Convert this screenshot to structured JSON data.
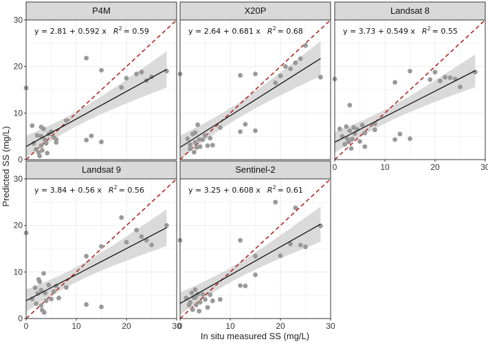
{
  "figure": {
    "xlabel": "In situ measured SS (mg/L)",
    "ylabel": "Predicted SS (mg/L)"
  },
  "colors": {
    "strip": "#d9d9d9",
    "point": "#999999",
    "band": "#d3d3d3",
    "fit": "#111111",
    "identity": "#b22222",
    "grid": "#ebebeb"
  },
  "chart_data": [
    {
      "type": "scatter",
      "title": "P4M",
      "equation": "y = 2.81 + 0.592 x",
      "r2_label": "R",
      "r2_value": "= 0.59",
      "intercept": 2.81,
      "slope": 0.592,
      "xlim": [
        0,
        30
      ],
      "ylim": [
        0,
        30
      ],
      "xticks": [
        0,
        10,
        20,
        30
      ],
      "yticks": [
        0,
        10,
        20,
        30
      ],
      "show_xticks": false,
      "show_yticks": true,
      "points": [
        [
          0,
          15.4
        ],
        [
          1.2,
          7.3
        ],
        [
          1.5,
          3.5
        ],
        [
          2,
          2.2
        ],
        [
          2.2,
          5.2
        ],
        [
          2.5,
          1.5
        ],
        [
          2.7,
          0.8
        ],
        [
          3,
          7
        ],
        [
          3,
          5
        ],
        [
          3,
          3
        ],
        [
          3.2,
          2
        ],
        [
          3.5,
          6.6
        ],
        [
          3.7,
          4.3
        ],
        [
          4,
          3.5
        ],
        [
          4.2,
          1.4
        ],
        [
          4.5,
          5.5
        ],
        [
          5,
          6
        ],
        [
          5.5,
          4.8
        ],
        [
          6,
          4.3
        ],
        [
          6,
          3.7
        ],
        [
          8,
          8.4
        ],
        [
          12,
          21.8
        ],
        [
          12,
          4.2
        ],
        [
          13,
          5.1
        ],
        [
          15,
          19.2
        ],
        [
          15,
          3.8
        ],
        [
          19,
          15.5
        ],
        [
          20,
          17.5
        ],
        [
          22,
          18.4
        ],
        [
          23,
          18.8
        ],
        [
          24,
          17
        ],
        [
          25,
          17.8
        ],
        [
          28,
          19
        ]
      ]
    },
    {
      "type": "scatter",
      "title": "X20P",
      "equation": "y = 2.64 + 0.681 x",
      "r2_label": "R",
      "r2_value": "= 0.68",
      "intercept": 2.64,
      "slope": 0.681,
      "xlim": [
        0,
        30
      ],
      "ylim": [
        0,
        30
      ],
      "xticks": [
        0,
        10,
        20,
        30
      ],
      "yticks": [
        0,
        10,
        20,
        30
      ],
      "show_xticks": false,
      "show_yticks": false,
      "points": [
        [
          0,
          18.4
        ],
        [
          1.5,
          4.5
        ],
        [
          2,
          3.2
        ],
        [
          2,
          2.3
        ],
        [
          2.5,
          5.5
        ],
        [
          2.8,
          1.6
        ],
        [
          3,
          5.8
        ],
        [
          3,
          3.7
        ],
        [
          3.3,
          2.6
        ],
        [
          3.5,
          7.5
        ],
        [
          3.8,
          4.3
        ],
        [
          4,
          2.8
        ],
        [
          4.5,
          4.3
        ],
        [
          5,
          5.2
        ],
        [
          5.5,
          3
        ],
        [
          6,
          4.6
        ],
        [
          6.5,
          3.1
        ],
        [
          8,
          6.9
        ],
        [
          12,
          18.1
        ],
        [
          12,
          6
        ],
        [
          13,
          7.6
        ],
        [
          15,
          18.4
        ],
        [
          15,
          6.2
        ],
        [
          19,
          16.5
        ],
        [
          20,
          18
        ],
        [
          21,
          20
        ],
        [
          22,
          19.5
        ],
        [
          23,
          20.8
        ],
        [
          24,
          21.7
        ],
        [
          25,
          24.5
        ],
        [
          28,
          17.7
        ]
      ]
    },
    {
      "type": "scatter",
      "title": "Landsat 8",
      "equation": "y = 3.73 + 0.549 x",
      "r2_label": "R",
      "r2_value": "= 0.55",
      "intercept": 3.73,
      "slope": 0.549,
      "xlim": [
        0,
        30
      ],
      "ylim": [
        0,
        30
      ],
      "xticks": [
        0,
        10,
        20,
        30
      ],
      "yticks": [
        0,
        10,
        20,
        30
      ],
      "show_xticks": true,
      "show_yticks": false,
      "points": [
        [
          0,
          17.3
        ],
        [
          1,
          6.6
        ],
        [
          1.5,
          5
        ],
        [
          2,
          3.3
        ],
        [
          2.3,
          7.1
        ],
        [
          2.5,
          4.5
        ],
        [
          2.8,
          3.8
        ],
        [
          3,
          11.7
        ],
        [
          3,
          6.2
        ],
        [
          3.3,
          2.4
        ],
        [
          3.5,
          4.4
        ],
        [
          3.8,
          6.9
        ],
        [
          4,
          5.6
        ],
        [
          4.5,
          6.5
        ],
        [
          5,
          3.9
        ],
        [
          5.5,
          7.4
        ],
        [
          6,
          5.7
        ],
        [
          6,
          2.8
        ],
        [
          8,
          6.4
        ],
        [
          8,
          7.7
        ],
        [
          12,
          16.6
        ],
        [
          12,
          4.3
        ],
        [
          13,
          5.5
        ],
        [
          15,
          19
        ],
        [
          15,
          4.5
        ],
        [
          19,
          17.2
        ],
        [
          20,
          18.8
        ],
        [
          21,
          16.9
        ],
        [
          22,
          17.7
        ],
        [
          23,
          17.6
        ],
        [
          24,
          17.3
        ],
        [
          25,
          15.6
        ],
        [
          28,
          18.8
        ]
      ]
    },
    {
      "type": "scatter",
      "title": "Landsat 9",
      "equation": "y = 3.84 + 0.56 x",
      "r2_label": "R",
      "r2_value": "= 0.56",
      "intercept": 3.84,
      "slope": 0.56,
      "xlim": [
        0,
        30
      ],
      "ylim": [
        0,
        30
      ],
      "xticks": [
        0,
        10,
        20,
        30
      ],
      "yticks": [
        0,
        10,
        20,
        30
      ],
      "show_xticks": true,
      "show_yticks": true,
      "points": [
        [
          0,
          18.4
        ],
        [
          1.2,
          4.2
        ],
        [
          1.8,
          6.6
        ],
        [
          2,
          3.2
        ],
        [
          2.3,
          5.4
        ],
        [
          2.5,
          8.4
        ],
        [
          2.7,
          7.9
        ],
        [
          3,
          6.1
        ],
        [
          3,
          2.8
        ],
        [
          3.2,
          1.8
        ],
        [
          3.5,
          9.7
        ],
        [
          3.6,
          1.3
        ],
        [
          3.8,
          5.5
        ],
        [
          4,
          3.8
        ],
        [
          4.5,
          7.2
        ],
        [
          5,
          4.2
        ],
        [
          5.5,
          5.8
        ],
        [
          6,
          7
        ],
        [
          6.5,
          4.4
        ],
        [
          8,
          6.7
        ],
        [
          12,
          13.4
        ],
        [
          12,
          3
        ],
        [
          15,
          15.5
        ],
        [
          15,
          2.5
        ],
        [
          19,
          21.7
        ],
        [
          20,
          16.4
        ],
        [
          22,
          19
        ],
        [
          23,
          17.6
        ],
        [
          24,
          16.8
        ],
        [
          25,
          15.8
        ],
        [
          28,
          20
        ]
      ]
    },
    {
      "type": "scatter",
      "title": "Sentinel-2",
      "equation": "y = 3.25 + 0.608 x",
      "r2_label": "R",
      "r2_value": "= 0.61",
      "intercept": 3.25,
      "slope": 0.608,
      "xlim": [
        0,
        30
      ],
      "ylim": [
        0,
        30
      ],
      "xticks": [
        0,
        10,
        20,
        30
      ],
      "yticks": [
        0,
        10,
        20,
        30
      ],
      "show_xticks": true,
      "show_yticks": false,
      "points": [
        [
          0,
          16.8
        ],
        [
          1.2,
          4.4
        ],
        [
          1.8,
          2.9
        ],
        [
          2,
          3.5
        ],
        [
          2.3,
          5.5
        ],
        [
          2.5,
          1.9
        ],
        [
          2.7,
          4.5
        ],
        [
          3,
          6.2
        ],
        [
          3,
          4.5
        ],
        [
          3.2,
          2.9
        ],
        [
          3.5,
          5.2
        ],
        [
          3.8,
          1.6
        ],
        [
          4,
          3.5
        ],
        [
          4.5,
          5.2
        ],
        [
          5,
          4.1
        ],
        [
          5.5,
          2.4
        ],
        [
          6,
          5.1
        ],
        [
          6.5,
          3.8
        ],
        [
          8,
          4.1
        ],
        [
          12,
          16.8
        ],
        [
          12,
          7.1
        ],
        [
          13,
          7
        ],
        [
          15,
          13.4
        ],
        [
          15,
          9.4
        ],
        [
          19,
          25
        ],
        [
          20,
          13.5
        ],
        [
          22,
          16
        ],
        [
          23,
          23.8
        ],
        [
          24,
          15.8
        ],
        [
          25,
          15.4
        ],
        [
          28,
          19.9
        ]
      ]
    }
  ]
}
